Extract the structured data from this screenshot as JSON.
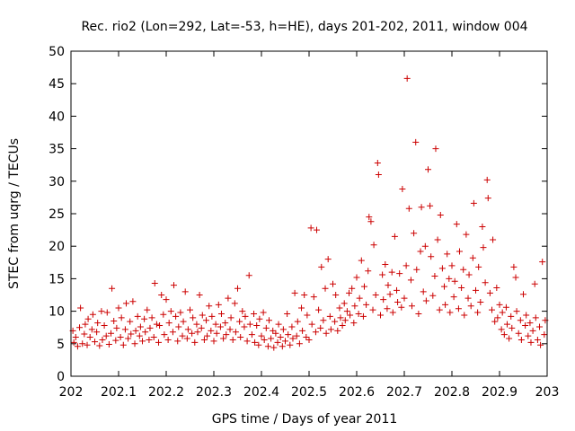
{
  "chart_data": {
    "type": "scatter",
    "title": "Rec. rio2 (Lon=292, Lat=-53, h=HE), days 201-202, 2011, window 004",
    "xlabel": "GPS time / Days of year 2011",
    "ylabel": "STEC from uqrg / TECUs",
    "xlim": [
      202,
      203
    ],
    "ylim": [
      0,
      50
    ],
    "x_ticks": [
      202,
      202.1,
      202.2,
      202.3,
      202.4,
      202.5,
      202.6,
      202.7,
      202.8,
      202.9,
      203
    ],
    "x_tick_labels": [
      "202",
      "202.1",
      "202.2",
      "202.3",
      "202.4",
      "202.5",
      "202.6",
      "202.7",
      "202.8",
      "202.9",
      "203"
    ],
    "y_ticks": [
      0,
      5,
      10,
      15,
      20,
      25,
      30,
      35,
      40,
      45,
      50
    ],
    "y_tick_labels": [
      "0",
      "5",
      "10",
      "15",
      "20",
      "25",
      "30",
      "35",
      "40",
      "45",
      "50"
    ],
    "marker": "+",
    "marker_color": "#cc0000",
    "grid": false,
    "points": [
      [
        202.004,
        7.0
      ],
      [
        202.006,
        5.2
      ],
      [
        202.01,
        6.0
      ],
      [
        202.014,
        4.6
      ],
      [
        202.018,
        7.5
      ],
      [
        202.02,
        10.5
      ],
      [
        202.024,
        5.0
      ],
      [
        202.028,
        6.5
      ],
      [
        202.03,
        8.0
      ],
      [
        202.034,
        4.8
      ],
      [
        202.036,
        8.8
      ],
      [
        202.04,
        6.0
      ],
      [
        202.044,
        7.2
      ],
      [
        202.046,
        9.5
      ],
      [
        202.05,
        5.3
      ],
      [
        202.054,
        6.8
      ],
      [
        202.056,
        8.2
      ],
      [
        202.06,
        4.7
      ],
      [
        202.064,
        10.0
      ],
      [
        202.066,
        5.6
      ],
      [
        202.07,
        7.8
      ],
      [
        202.074,
        6.2
      ],
      [
        202.076,
        9.8
      ],
      [
        202.08,
        4.9
      ],
      [
        202.084,
        6.6
      ],
      [
        202.086,
        13.5
      ],
      [
        202.09,
        8.5
      ],
      [
        202.094,
        5.5
      ],
      [
        202.096,
        7.4
      ],
      [
        202.1,
        10.5
      ],
      [
        202.104,
        6.0
      ],
      [
        202.106,
        9.0
      ],
      [
        202.11,
        4.8
      ],
      [
        202.114,
        7.2
      ],
      [
        202.116,
        11.2
      ],
      [
        202.12,
        5.8
      ],
      [
        202.124,
        8.4
      ],
      [
        202.126,
        6.5
      ],
      [
        202.13,
        11.5
      ],
      [
        202.134,
        5.0
      ],
      [
        202.136,
        7.0
      ],
      [
        202.14,
        9.2
      ],
      [
        202.144,
        6.2
      ],
      [
        202.146,
        7.6
      ],
      [
        202.15,
        5.4
      ],
      [
        202.154,
        8.8
      ],
      [
        202.156,
        6.8
      ],
      [
        202.16,
        10.2
      ],
      [
        202.164,
        5.6
      ],
      [
        202.166,
        7.4
      ],
      [
        202.17,
        9.0
      ],
      [
        202.174,
        6.0
      ],
      [
        202.176,
        14.3
      ],
      [
        202.18,
        8.0
      ],
      [
        202.184,
        5.2
      ],
      [
        202.186,
        7.8
      ],
      [
        202.19,
        12.5
      ],
      [
        202.194,
        9.5
      ],
      [
        202.196,
        6.4
      ],
      [
        202.2,
        11.8
      ],
      [
        202.204,
        5.6
      ],
      [
        202.206,
        8.2
      ],
      [
        202.21,
        10.0
      ],
      [
        202.214,
        6.8
      ],
      [
        202.216,
        14.0
      ],
      [
        202.22,
        9.2
      ],
      [
        202.224,
        5.4
      ],
      [
        202.226,
        7.6
      ],
      [
        202.23,
        9.8
      ],
      [
        202.234,
        6.2
      ],
      [
        202.236,
        8.4
      ],
      [
        202.24,
        13.0
      ],
      [
        202.244,
        5.8
      ],
      [
        202.246,
        7.2
      ],
      [
        202.25,
        10.2
      ],
      [
        202.254,
        6.6
      ],
      [
        202.256,
        9.0
      ],
      [
        202.26,
        5.2
      ],
      [
        202.264,
        8.0
      ],
      [
        202.266,
        6.8
      ],
      [
        202.27,
        12.5
      ],
      [
        202.274,
        7.4
      ],
      [
        202.276,
        9.4
      ],
      [
        202.28,
        5.6
      ],
      [
        202.284,
        8.6
      ],
      [
        202.286,
        6.2
      ],
      [
        202.29,
        10.8
      ],
      [
        202.294,
        7.0
      ],
      [
        202.296,
        9.2
      ],
      [
        202.3,
        5.4
      ],
      [
        202.304,
        8.0
      ],
      [
        202.306,
        6.6
      ],
      [
        202.31,
        11.0
      ],
      [
        202.314,
        7.6
      ],
      [
        202.316,
        9.6
      ],
      [
        202.32,
        5.8
      ],
      [
        202.324,
        8.2
      ],
      [
        202.326,
        6.4
      ],
      [
        202.33,
        12.0
      ],
      [
        202.334,
        7.2
      ],
      [
        202.336,
        9.0
      ],
      [
        202.34,
        5.6
      ],
      [
        202.344,
        11.2
      ],
      [
        202.346,
        6.8
      ],
      [
        202.35,
        13.5
      ],
      [
        202.354,
        8.4
      ],
      [
        202.356,
        6.0
      ],
      [
        202.36,
        10.0
      ],
      [
        202.364,
        7.6
      ],
      [
        202.366,
        9.2
      ],
      [
        202.37,
        5.4
      ],
      [
        202.374,
        15.5
      ],
      [
        202.376,
        8.0
      ],
      [
        202.38,
        6.4
      ],
      [
        202.384,
        9.6
      ],
      [
        202.386,
        5.2
      ],
      [
        202.39,
        7.8
      ],
      [
        202.394,
        4.8
      ],
      [
        202.396,
        8.8
      ],
      [
        202.4,
        6.2
      ],
      [
        202.404,
        9.8
      ],
      [
        202.406,
        5.6
      ],
      [
        202.41,
        7.4
      ],
      [
        202.414,
        4.6
      ],
      [
        202.416,
        8.6
      ],
      [
        202.42,
        5.8
      ],
      [
        202.424,
        7.0
      ],
      [
        202.426,
        4.4
      ],
      [
        202.43,
        6.6
      ],
      [
        202.434,
        5.2
      ],
      [
        202.436,
        8.0
      ],
      [
        202.44,
        6.0
      ],
      [
        202.444,
        4.6
      ],
      [
        202.446,
        7.2
      ],
      [
        202.45,
        5.4
      ],
      [
        202.454,
        9.6
      ],
      [
        202.456,
        6.4
      ],
      [
        202.46,
        4.8
      ],
      [
        202.464,
        7.6
      ],
      [
        202.466,
        5.8
      ],
      [
        202.47,
        12.8
      ],
      [
        202.474,
        6.2
      ],
      [
        202.476,
        8.4
      ],
      [
        202.48,
        5.0
      ],
      [
        202.484,
        10.5
      ],
      [
        202.486,
        7.0
      ],
      [
        202.49,
        12.5
      ],
      [
        202.494,
        6.0
      ],
      [
        202.496,
        9.4
      ],
      [
        202.5,
        5.6
      ],
      [
        202.504,
        22.8
      ],
      [
        202.506,
        8.0
      ],
      [
        202.51,
        12.2
      ],
      [
        202.514,
        6.8
      ],
      [
        202.516,
        22.5
      ],
      [
        202.52,
        10.2
      ],
      [
        202.524,
        7.4
      ],
      [
        202.526,
        16.8
      ],
      [
        202.53,
        8.6
      ],
      [
        202.534,
        13.5
      ],
      [
        202.536,
        6.6
      ],
      [
        202.54,
        18.0
      ],
      [
        202.544,
        9.2
      ],
      [
        202.546,
        7.2
      ],
      [
        202.55,
        14.2
      ],
      [
        202.554,
        8.4
      ],
      [
        202.556,
        12.5
      ],
      [
        202.56,
        7.0
      ],
      [
        202.564,
        10.5
      ],
      [
        202.566,
        9.0
      ],
      [
        202.57,
        7.8
      ],
      [
        202.574,
        11.2
      ],
      [
        202.576,
        8.6
      ],
      [
        202.58,
        10.0
      ],
      [
        202.584,
        12.8
      ],
      [
        202.586,
        9.4
      ],
      [
        202.59,
        13.5
      ],
      [
        202.594,
        8.2
      ],
      [
        202.596,
        10.8
      ],
      [
        202.6,
        15.2
      ],
      [
        202.604,
        9.6
      ],
      [
        202.606,
        12.0
      ],
      [
        202.61,
        17.8
      ],
      [
        202.614,
        9.2
      ],
      [
        202.616,
        13.8
      ],
      [
        202.62,
        11.0
      ],
      [
        202.624,
        16.2
      ],
      [
        202.626,
        24.5
      ],
      [
        202.63,
        23.8
      ],
      [
        202.634,
        10.2
      ],
      [
        202.636,
        20.2
      ],
      [
        202.64,
        12.5
      ],
      [
        202.644,
        32.8
      ],
      [
        202.646,
        31.0
      ],
      [
        202.65,
        9.4
      ],
      [
        202.654,
        15.6
      ],
      [
        202.656,
        11.8
      ],
      [
        202.66,
        17.2
      ],
      [
        202.664,
        10.4
      ],
      [
        202.666,
        14.0
      ],
      [
        202.67,
        12.6
      ],
      [
        202.674,
        16.0
      ],
      [
        202.676,
        9.8
      ],
      [
        202.68,
        21.5
      ],
      [
        202.684,
        13.2
      ],
      [
        202.686,
        11.4
      ],
      [
        202.69,
        15.8
      ],
      [
        202.694,
        10.6
      ],
      [
        202.696,
        28.8
      ],
      [
        202.7,
        12.0
      ],
      [
        202.704,
        17.0
      ],
      [
        202.706,
        45.8
      ],
      [
        202.71,
        25.8
      ],
      [
        202.714,
        14.8
      ],
      [
        202.716,
        10.8
      ],
      [
        202.72,
        22.0
      ],
      [
        202.724,
        36.0
      ],
      [
        202.726,
        16.4
      ],
      [
        202.73,
        9.6
      ],
      [
        202.734,
        19.2
      ],
      [
        202.736,
        26.0
      ],
      [
        202.74,
        13.0
      ],
      [
        202.744,
        20.0
      ],
      [
        202.746,
        11.6
      ],
      [
        202.75,
        31.8
      ],
      [
        202.754,
        26.2
      ],
      [
        202.756,
        18.4
      ],
      [
        202.76,
        12.4
      ],
      [
        202.764,
        15.4
      ],
      [
        202.766,
        35.0
      ],
      [
        202.77,
        21.0
      ],
      [
        202.774,
        10.2
      ],
      [
        202.776,
        24.8
      ],
      [
        202.78,
        16.6
      ],
      [
        202.784,
        13.8
      ],
      [
        202.786,
        11.0
      ],
      [
        202.79,
        18.8
      ],
      [
        202.794,
        15.0
      ],
      [
        202.796,
        9.8
      ],
      [
        202.8,
        17.0
      ],
      [
        202.804,
        12.2
      ],
      [
        202.806,
        14.6
      ],
      [
        202.81,
        23.4
      ],
      [
        202.814,
        10.4
      ],
      [
        202.816,
        19.2
      ],
      [
        202.82,
        13.6
      ],
      [
        202.824,
        16.4
      ],
      [
        202.826,
        9.4
      ],
      [
        202.83,
        21.8
      ],
      [
        202.834,
        12.0
      ],
      [
        202.836,
        15.6
      ],
      [
        202.84,
        10.8
      ],
      [
        202.844,
        18.2
      ],
      [
        202.846,
        26.6
      ],
      [
        202.85,
        13.2
      ],
      [
        202.854,
        9.8
      ],
      [
        202.856,
        16.8
      ],
      [
        202.86,
        11.4
      ],
      [
        202.864,
        23.0
      ],
      [
        202.866,
        19.8
      ],
      [
        202.87,
        14.4
      ],
      [
        202.874,
        30.2
      ],
      [
        202.876,
        27.4
      ],
      [
        202.88,
        12.8
      ],
      [
        202.884,
        10.2
      ],
      [
        202.886,
        21.0
      ],
      [
        202.89,
        8.4
      ],
      [
        202.894,
        13.6
      ],
      [
        202.896,
        9.0
      ],
      [
        202.9,
        11.0
      ],
      [
        202.904,
        7.2
      ],
      [
        202.906,
        9.8
      ],
      [
        202.91,
        6.4
      ],
      [
        202.914,
        10.6
      ],
      [
        202.916,
        8.0
      ],
      [
        202.92,
        5.8
      ],
      [
        202.924,
        9.2
      ],
      [
        202.926,
        7.4
      ],
      [
        202.93,
        16.8
      ],
      [
        202.934,
        15.2
      ],
      [
        202.936,
        10.0
      ],
      [
        202.94,
        6.6
      ],
      [
        202.944,
        8.6
      ],
      [
        202.946,
        5.6
      ],
      [
        202.95,
        12.6
      ],
      [
        202.954,
        7.8
      ],
      [
        202.956,
        9.4
      ],
      [
        202.96,
        6.2
      ],
      [
        202.964,
        8.2
      ],
      [
        202.966,
        5.2
      ],
      [
        202.97,
        7.0
      ],
      [
        202.974,
        14.2
      ],
      [
        202.976,
        9.0
      ],
      [
        202.98,
        5.6
      ],
      [
        202.984,
        7.6
      ],
      [
        202.986,
        4.8
      ],
      [
        202.99,
        17.6
      ],
      [
        202.994,
        6.4
      ],
      [
        202.996,
        8.6
      ]
    ]
  }
}
